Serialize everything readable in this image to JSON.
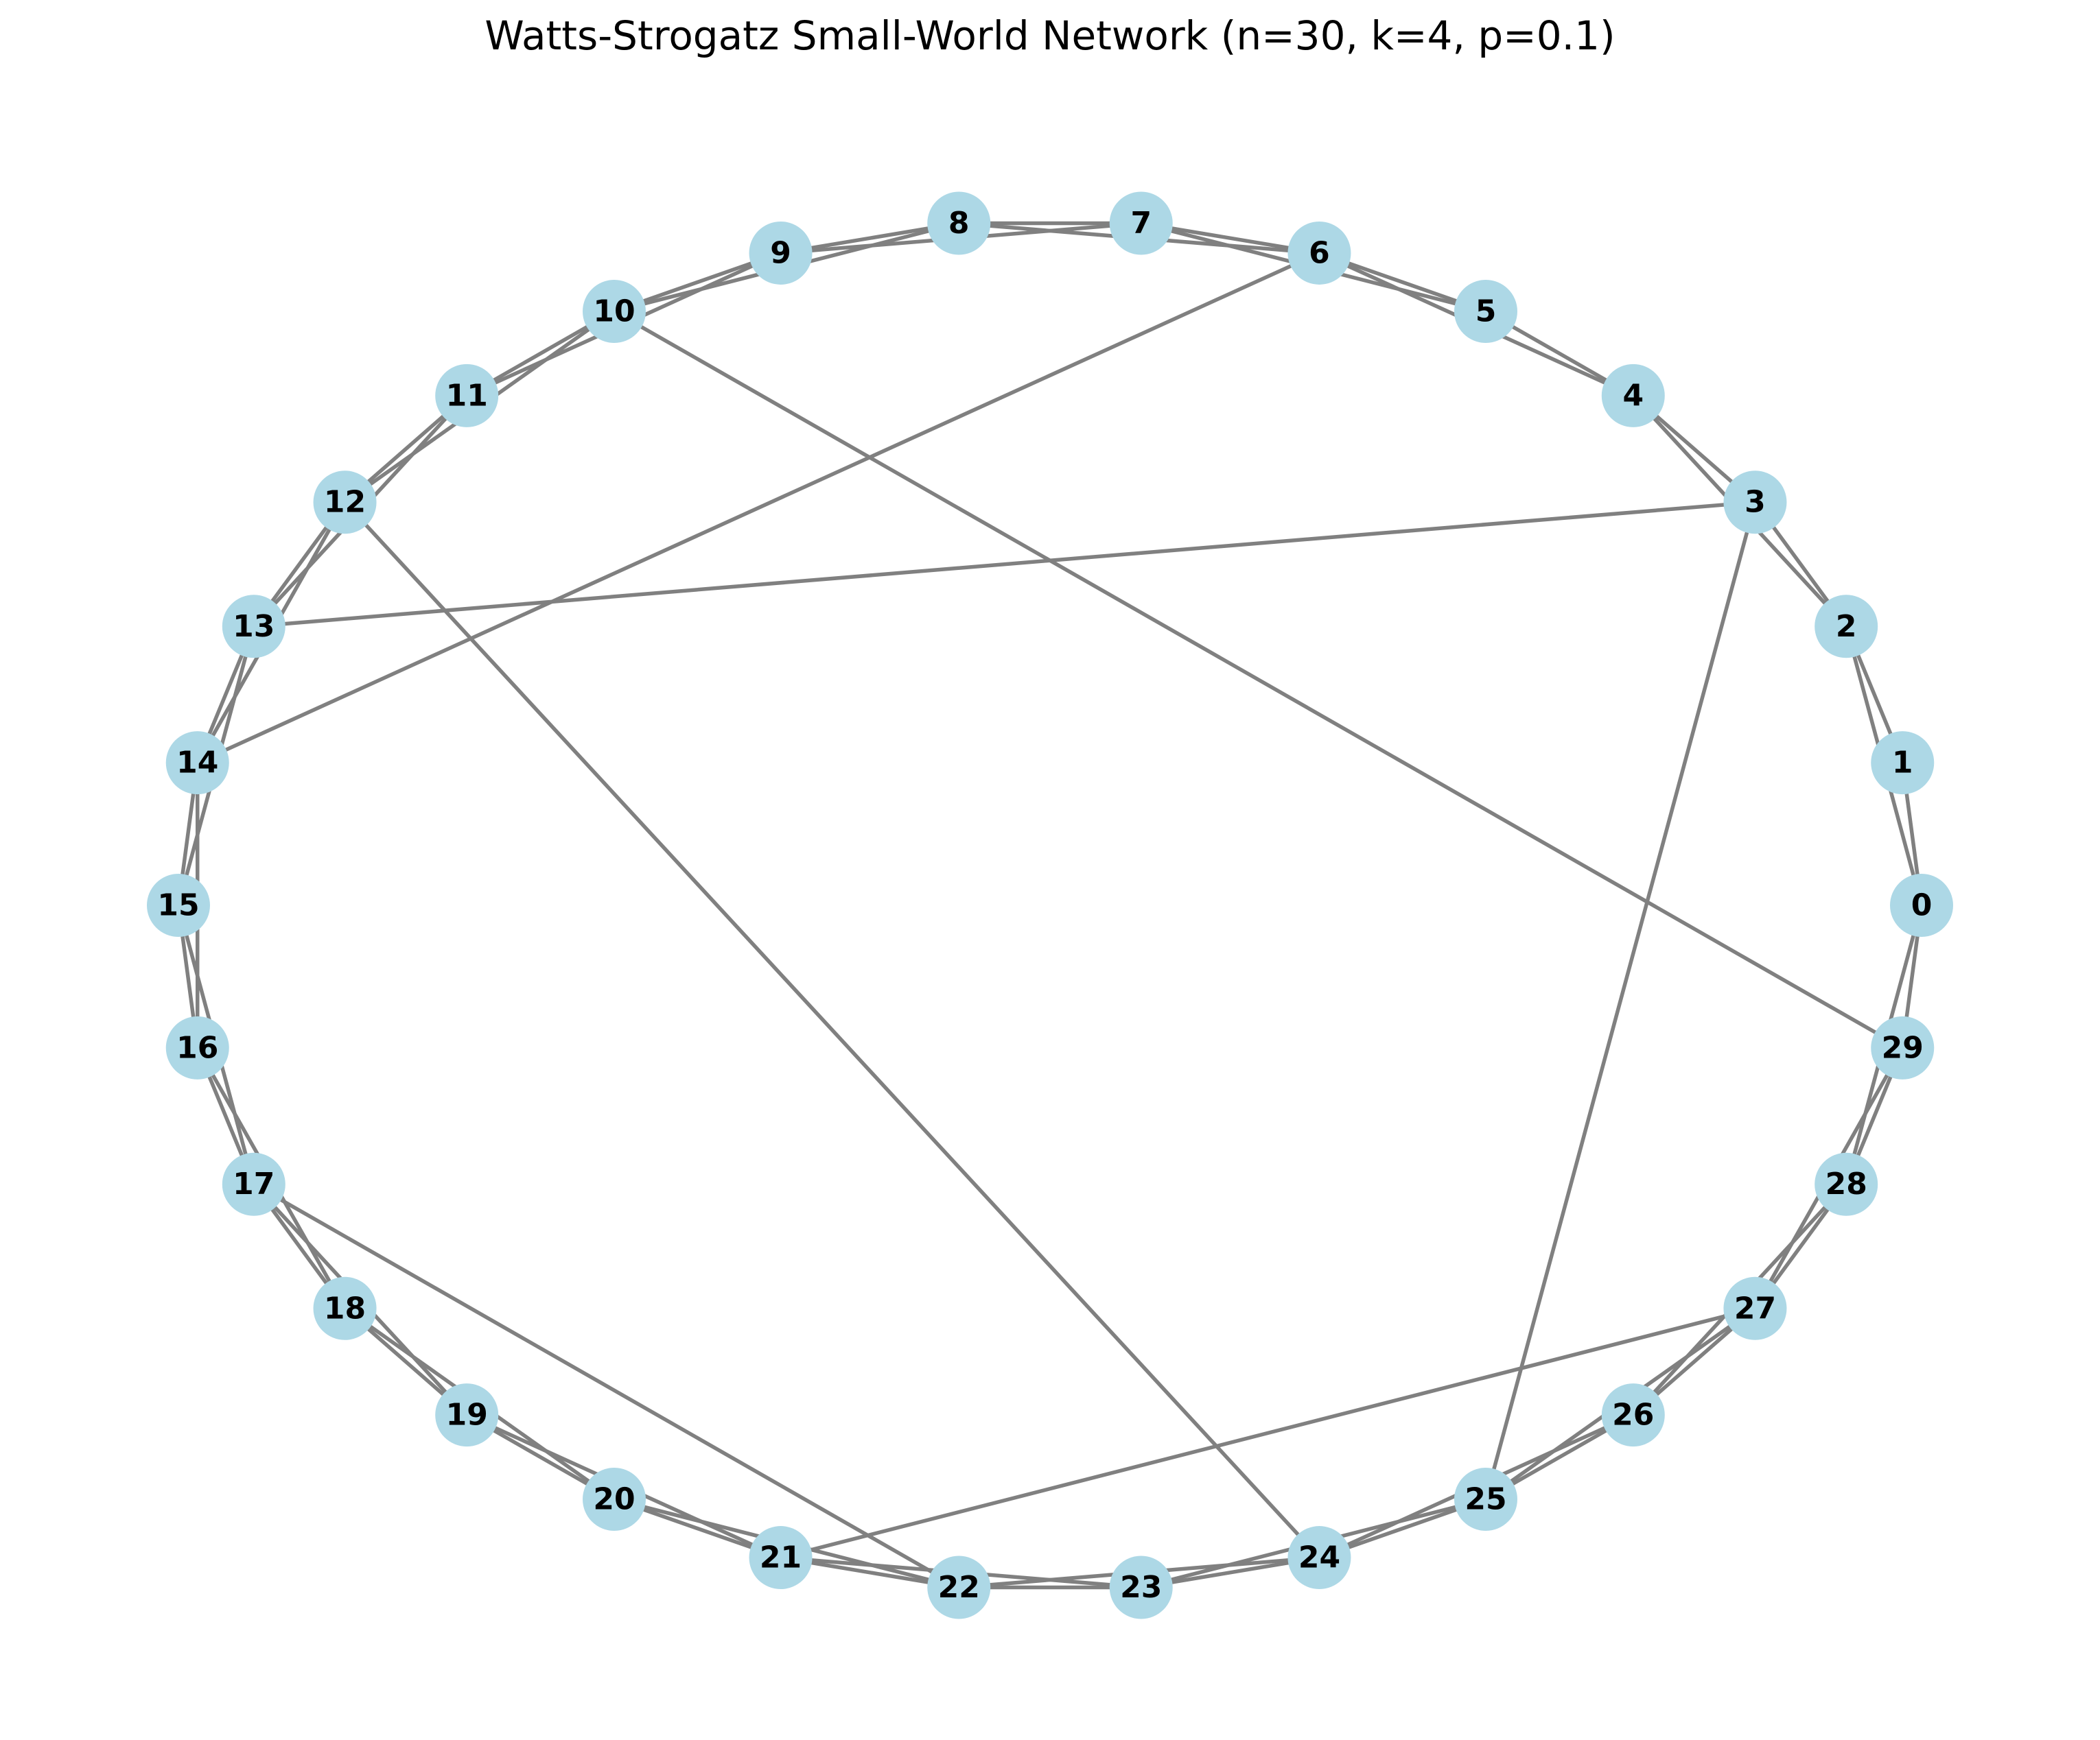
{
  "title": "Watts-Strogatz Small-World Network (n=30, k=4, p=0.1)",
  "colors": {
    "node_fill": "#add8e6",
    "edge": "#808080",
    "label": "#000000",
    "background": "#ffffff"
  },
  "graph": {
    "nodes": [
      "0",
      "1",
      "2",
      "3",
      "4",
      "5",
      "6",
      "7",
      "8",
      "9",
      "10",
      "11",
      "12",
      "13",
      "14",
      "15",
      "16",
      "17",
      "18",
      "19",
      "20",
      "21",
      "22",
      "23",
      "24",
      "25",
      "26",
      "27",
      "28",
      "29"
    ],
    "edges": [
      [
        0,
        1
      ],
      [
        0,
        2
      ],
      [
        1,
        2
      ],
      [
        2,
        3
      ],
      [
        2,
        4
      ],
      [
        3,
        4
      ],
      [
        4,
        5
      ],
      [
        4,
        6
      ],
      [
        5,
        6
      ],
      [
        5,
        7
      ],
      [
        6,
        7
      ],
      [
        6,
        8
      ],
      [
        7,
        8
      ],
      [
        7,
        9
      ],
      [
        8,
        9
      ],
      [
        8,
        10
      ],
      [
        9,
        10
      ],
      [
        9,
        11
      ],
      [
        10,
        11
      ],
      [
        10,
        12
      ],
      [
        11,
        12
      ],
      [
        11,
        13
      ],
      [
        12,
        13
      ],
      [
        12,
        14
      ],
      [
        13,
        14
      ],
      [
        13,
        15
      ],
      [
        14,
        15
      ],
      [
        14,
        16
      ],
      [
        15,
        16
      ],
      [
        15,
        17
      ],
      [
        16,
        17
      ],
      [
        16,
        18
      ],
      [
        17,
        18
      ],
      [
        17,
        19
      ],
      [
        18,
        19
      ],
      [
        18,
        20
      ],
      [
        19,
        20
      ],
      [
        19,
        21
      ],
      [
        20,
        21
      ],
      [
        20,
        22
      ],
      [
        21,
        22
      ],
      [
        21,
        23
      ],
      [
        22,
        23
      ],
      [
        22,
        24
      ],
      [
        23,
        24
      ],
      [
        23,
        25
      ],
      [
        24,
        25
      ],
      [
        24,
        26
      ],
      [
        25,
        26
      ],
      [
        25,
        27
      ],
      [
        26,
        27
      ],
      [
        26,
        28
      ],
      [
        27,
        28
      ],
      [
        27,
        29
      ],
      [
        28,
        29
      ],
      [
        28,
        0
      ],
      [
        29,
        0
      ],
      [
        3,
        13
      ],
      [
        6,
        14
      ],
      [
        10,
        29
      ],
      [
        12,
        24
      ],
      [
        17,
        22
      ],
      [
        3,
        25
      ],
      [
        21,
        27
      ]
    ]
  }
}
